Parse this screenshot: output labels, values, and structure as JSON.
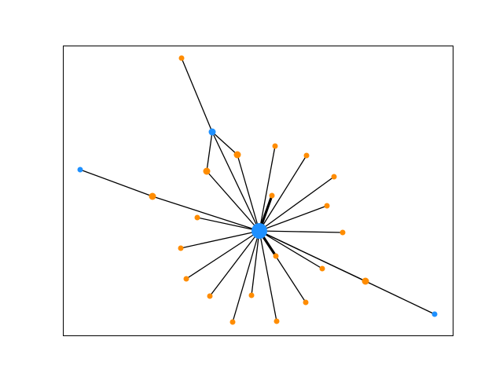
{
  "colors": {
    "blue": "#1e90ff",
    "orange": "#ff8c00",
    "edge": "#000000",
    "frame": "#000000",
    "background": "#ffffff"
  },
  "graph": {
    "hub": "hub",
    "nodes": [
      {
        "id": "hub",
        "color": "blue",
        "weight": 3
      },
      {
        "id": "b_top",
        "color": "blue",
        "weight": 2
      },
      {
        "id": "b_left",
        "color": "blue",
        "weight": 1
      },
      {
        "id": "b_right",
        "color": "blue",
        "weight": 1
      },
      {
        "id": "o_top",
        "color": "orange",
        "weight": 1
      },
      {
        "id": "o1",
        "color": "orange",
        "weight": 2
      },
      {
        "id": "o2",
        "color": "orange",
        "weight": 2
      },
      {
        "id": "o3",
        "color": "orange",
        "weight": 1
      },
      {
        "id": "o4",
        "color": "orange",
        "weight": 1
      },
      {
        "id": "o5",
        "color": "orange",
        "weight": 1
      },
      {
        "id": "o6",
        "color": "orange",
        "weight": 1
      },
      {
        "id": "o7",
        "color": "orange",
        "weight": 1
      },
      {
        "id": "o8",
        "color": "orange",
        "weight": 1
      },
      {
        "id": "o9",
        "color": "orange",
        "weight": 1
      },
      {
        "id": "o10",
        "color": "orange",
        "weight": 2
      },
      {
        "id": "o11",
        "color": "orange",
        "weight": 1
      },
      {
        "id": "o12",
        "color": "orange",
        "weight": 1
      },
      {
        "id": "o13",
        "color": "orange",
        "weight": 1
      },
      {
        "id": "o14",
        "color": "orange",
        "weight": 1
      },
      {
        "id": "o15",
        "color": "orange",
        "weight": 1
      },
      {
        "id": "o16",
        "color": "orange",
        "weight": 1
      },
      {
        "id": "o17",
        "color": "orange",
        "weight": 1
      },
      {
        "id": "o18",
        "color": "orange",
        "weight": 1
      },
      {
        "id": "o19",
        "color": "orange",
        "weight": 1
      },
      {
        "id": "o20",
        "color": "orange",
        "weight": 1
      },
      {
        "id": "o21",
        "color": "orange",
        "weight": 2
      }
    ],
    "edges": [
      {
        "source": "o_top",
        "target": "b_top",
        "width": 1
      },
      {
        "source": "b_top",
        "target": "o1",
        "width": 1
      },
      {
        "source": "b_top",
        "target": "o2",
        "width": 1
      },
      {
        "source": "b_top",
        "target": "hub",
        "width": 1
      },
      {
        "source": "o1",
        "target": "hub",
        "width": 1
      },
      {
        "source": "o2",
        "target": "hub",
        "width": 1
      },
      {
        "source": "b_left",
        "target": "o10",
        "width": 1
      },
      {
        "source": "o10",
        "target": "hub",
        "width": 1
      },
      {
        "source": "o3",
        "target": "hub",
        "width": 1
      },
      {
        "source": "o4",
        "target": "hub",
        "width": 1
      },
      {
        "source": "o5",
        "target": "hub",
        "width": 1
      },
      {
        "source": "o6",
        "target": "hub",
        "width": 1
      },
      {
        "source": "o7",
        "target": "hub",
        "width": 3
      },
      {
        "source": "o8",
        "target": "hub",
        "width": 1
      },
      {
        "source": "o9",
        "target": "hub",
        "width": 1
      },
      {
        "source": "o11",
        "target": "hub",
        "width": 1
      },
      {
        "source": "o12",
        "target": "hub",
        "width": 1
      },
      {
        "source": "o13",
        "target": "hub",
        "width": 1
      },
      {
        "source": "o14",
        "target": "hub",
        "width": 1
      },
      {
        "source": "o15",
        "target": "hub",
        "width": 1
      },
      {
        "source": "o16",
        "target": "hub",
        "width": 1
      },
      {
        "source": "o17",
        "target": "hub",
        "width": 1
      },
      {
        "source": "o18",
        "target": "hub",
        "width": 1
      },
      {
        "source": "o19",
        "target": "hub",
        "width": 3
      },
      {
        "source": "o20",
        "target": "hub",
        "width": 1
      },
      {
        "source": "o21",
        "target": "hub",
        "width": 1
      },
      {
        "source": "o21",
        "target": "b_right",
        "width": 1
      }
    ]
  }
}
